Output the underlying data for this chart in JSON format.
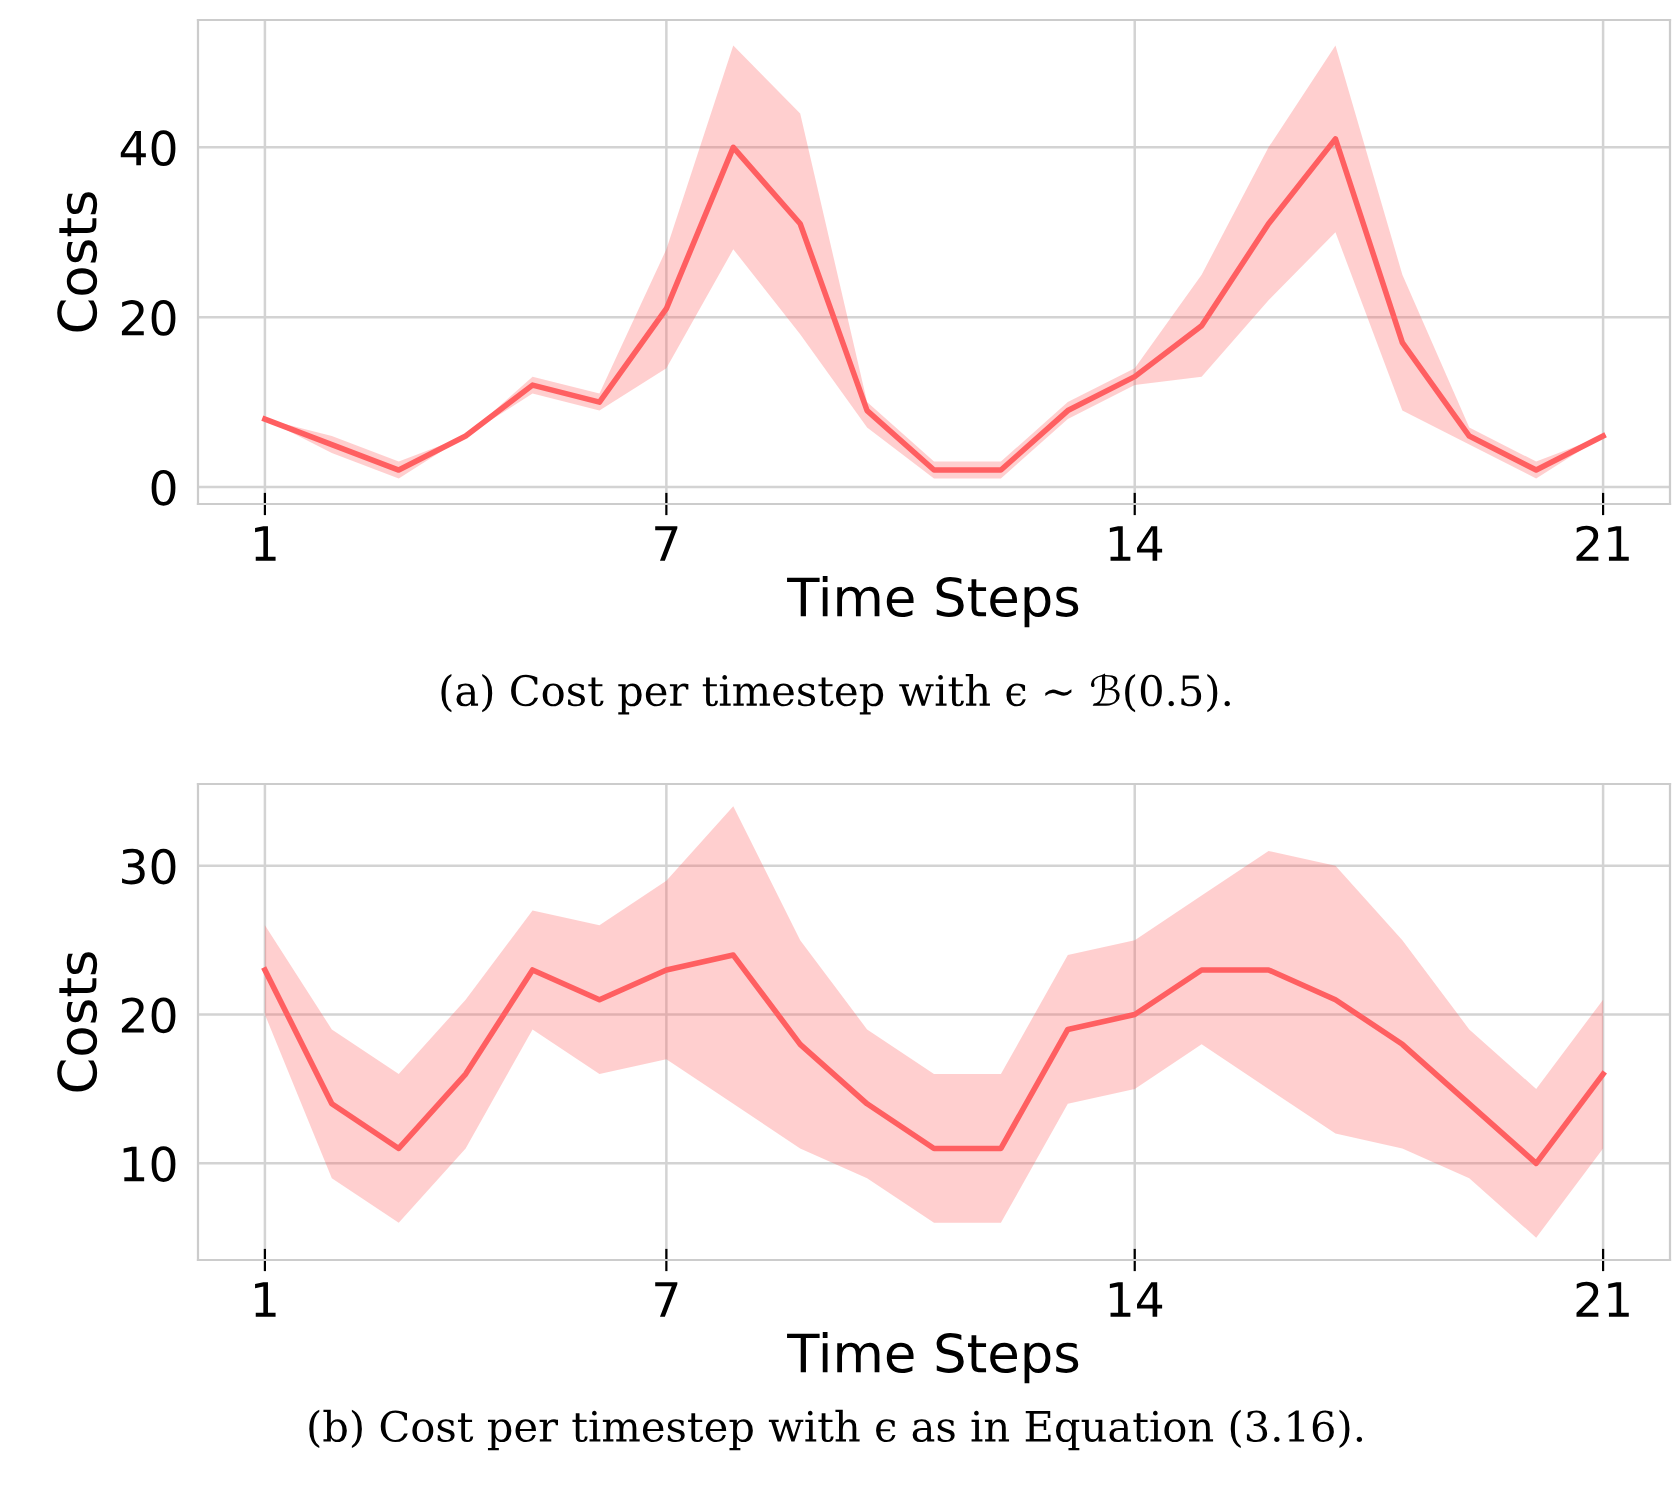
{
  "chart_data": [
    {
      "type": "line",
      "xlabel": "Time Steps",
      "ylabel": "Costs",
      "x": [
        1,
        2,
        3,
        4,
        5,
        6,
        7,
        8,
        9,
        10,
        11,
        12,
        13,
        14,
        15,
        16,
        17,
        18,
        19,
        20,
        21
      ],
      "series": [
        {
          "color": "#ff5f61",
          "values": [
            8,
            5,
            2,
            6,
            12,
            10,
            21,
            40,
            31,
            9,
            2,
            2,
            9,
            13,
            19,
            31,
            41,
            17,
            6,
            2,
            6
          ],
          "lower": [
            8,
            4,
            1,
            6,
            11,
            9,
            14,
            28,
            18,
            7,
            1,
            1,
            8,
            12,
            13,
            22,
            30,
            9,
            5,
            1,
            6
          ],
          "upper": [
            8,
            6,
            3,
            6,
            13,
            11,
            28,
            52,
            44,
            10,
            3,
            3,
            10,
            14,
            25,
            40,
            52,
            25,
            7,
            3,
            6
          ]
        }
      ],
      "xlim": [
        0,
        22
      ],
      "xticks": [
        1,
        7,
        14,
        21
      ],
      "ylim": [
        -2,
        55
      ],
      "yticks": [
        0,
        20,
        40
      ],
      "grid": true,
      "annotations": [
        "(a) Cost per timestep with ϵ ∼ ℬ(0.5)."
      ]
    },
    {
      "type": "line",
      "xlabel": "Time Steps",
      "ylabel": "Costs",
      "x": [
        1,
        2,
        3,
        4,
        5,
        6,
        7,
        8,
        9,
        10,
        11,
        12,
        13,
        14,
        15,
        16,
        17,
        18,
        19,
        20,
        21
      ],
      "series": [
        {
          "color": "#ff5f61",
          "values": [
            23,
            14,
            11,
            16,
            23,
            21,
            23,
            24,
            18,
            14,
            11,
            11,
            19,
            20,
            23,
            23,
            21,
            18,
            14,
            10,
            16
          ],
          "lower": [
            20,
            9,
            6,
            11,
            19,
            16,
            17,
            14,
            11,
            9,
            6,
            6,
            14,
            15,
            18,
            15,
            12,
            11,
            9,
            5,
            11
          ],
          "upper": [
            26,
            19,
            16,
            21,
            27,
            26,
            29,
            34,
            25,
            19,
            16,
            16,
            24,
            25,
            28,
            31,
            30,
            25,
            19,
            15,
            21
          ]
        }
      ],
      "xlim": [
        0,
        22
      ],
      "xticks": [
        1,
        7,
        14,
        21
      ],
      "ylim": [
        3.5,
        35.5
      ],
      "yticks": [
        10,
        20,
        30
      ],
      "grid": true,
      "annotations": [
        "(b) Cost per timestep with ϵ as in Equation (3.16)."
      ]
    }
  ]
}
